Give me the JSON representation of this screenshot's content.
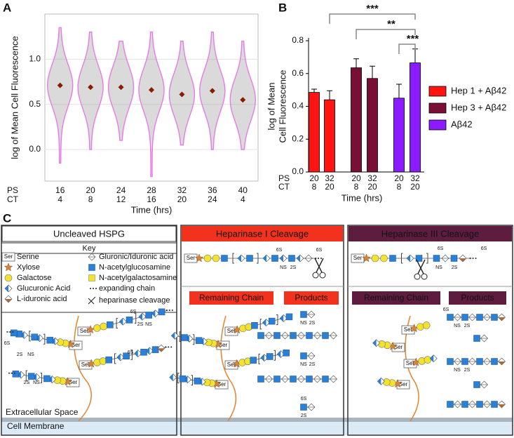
{
  "chart_data": [
    {
      "type": "violin",
      "panel": "A",
      "ylabel": "log of Mean Cell Fluorescence",
      "xlabel": "Time (hrs)",
      "x_rows": [
        {
          "name": "PS",
          "values": [
            "16",
            "20",
            "24",
            "28",
            "32",
            "36",
            "40"
          ]
        },
        {
          "name": "CT",
          "values": [
            "4",
            "8",
            "12",
            "16",
            "20",
            "24",
            "4"
          ]
        }
      ],
      "means": [
        0.71,
        0.69,
        0.69,
        0.66,
        0.61,
        0.65,
        0.55
      ],
      "ranges": [
        [
          -0.15,
          1.35
        ],
        [
          0.0,
          1.3
        ],
        [
          0.1,
          1.2
        ],
        [
          -0.3,
          1.3
        ],
        [
          0.05,
          1.2
        ],
        [
          0.0,
          1.3
        ],
        [
          0.0,
          1.2
        ]
      ],
      "color": "#e67ae8",
      "mean_color": "#8b1a00",
      "ylim": [
        -0.35,
        1.5
      ],
      "yticks": [
        {
          "value": 0,
          "label": "0.0"
        },
        {
          "value": 0.5,
          "label": "0.5"
        },
        {
          "value": 1,
          "label": "1.0"
        }
      ],
      "grid": true
    },
    {
      "type": "bar",
      "panel": "B",
      "ylabel": [
        "log of Mean",
        "Cell Fluorescence"
      ],
      "xlabel": "Time (hrs)",
      "x_rows": [
        {
          "name": "PS",
          "values": [
            "20",
            "32",
            "20",
            "32",
            "20",
            "32"
          ]
        },
        {
          "name": "CT",
          "values": [
            "8",
            "20",
            "8",
            "20",
            "8",
            "20"
          ]
        }
      ],
      "series": [
        {
          "name": "Hep 1 + Aβ42",
          "color": "#ff1414",
          "values": [
            0.485,
            0.44
          ],
          "errors": [
            0.02,
            0.055
          ]
        },
        {
          "name": "Hep 3 + Aβ42",
          "color": "#7a0f35",
          "values": [
            0.635,
            0.57
          ],
          "errors": [
            0.055,
            0.075
          ]
        },
        {
          "name": "Aβ42",
          "color": "#8a1cff",
          "values": [
            0.45,
            0.665
          ],
          "errors": [
            0.085,
            0.085
          ]
        }
      ],
      "ylim": [
        0,
        0.8
      ],
      "yticks": [
        {
          "value": 0,
          "label": "0.0"
        },
        {
          "value": 0.2,
          "label": "0.2"
        },
        {
          "value": 0.4,
          "label": "0.4"
        },
        {
          "value": 0.6,
          "label": "0.6"
        },
        {
          "value": 0.8,
          "label": "0.8"
        }
      ],
      "annotations": [
        "***",
        "**",
        "***"
      ],
      "legend": "right"
    }
  ],
  "diagram": {
    "panel_label": "C",
    "ser": "Ser",
    "space": "Extracellular Space",
    "membrane": "Cell Membrane",
    "panels": [
      {
        "title": "Uncleaved HSPG",
        "key_title": "Key",
        "key": [
          "Serine",
          "Gluronic/Iduronic acid",
          "Xylose",
          "N-acetylglucosamine",
          "Galactose",
          "N-acetylgalactosamine",
          "Glucuronic Acid",
          "expanding chain",
          "L-iduronic acid",
          "heparinase cleavage"
        ],
        "labels": [
          "6S",
          "NS",
          "2S",
          "6S",
          "2S",
          "NS",
          "6S",
          "2S",
          "NS"
        ]
      },
      {
        "title": "Heparinase I Cleavage",
        "sections": [
          "Remaining Chain",
          "Products"
        ],
        "labels": [
          "6S",
          "NS",
          "2S",
          "6S",
          "NS",
          "2S",
          "NS",
          "2S",
          "6S",
          "2S"
        ]
      },
      {
        "title": "Heparinase III Cleavage",
        "sections": [
          "Remaining Chain",
          "Products"
        ],
        "labels": [
          "6S",
          "NS",
          "2S",
          "6S",
          "6S",
          "NS",
          "2S",
          "NS",
          "2S"
        ]
      }
    ]
  }
}
